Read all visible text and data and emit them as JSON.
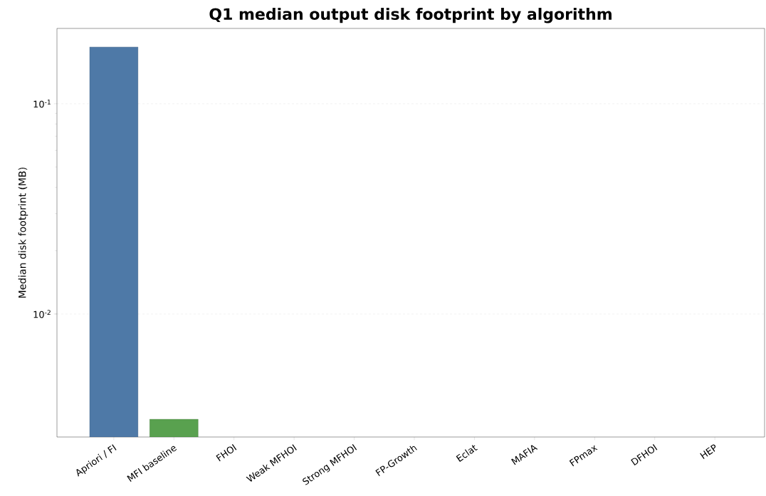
{
  "chart_data": {
    "type": "bar",
    "title": "Q1 median output disk footprint by algorithm",
    "ylabel": "Median disk footprint (MB)",
    "categories": [
      "Apriori / FI",
      "MFI baseline",
      "FHOI",
      "Weak MFHOI",
      "Strong MFHOI",
      "FP-Growth",
      "Eclat",
      "MAFIA",
      "FPmax",
      "DFHOI",
      "HEP"
    ],
    "values": [
      0.186,
      0.00316,
      null,
      null,
      null,
      null,
      null,
      null,
      null,
      null,
      null
    ],
    "colors": [
      "#4e79a7",
      "#59a14f",
      "#4e79a7",
      "#4e79a7",
      "#4e79a7",
      "#4e79a7",
      "#4e79a7",
      "#4e79a7",
      "#4e79a7",
      "#4e79a7",
      "#4e79a7"
    ],
    "log": "y",
    "ylim": [
      0.0026,
      0.228
    ],
    "yticks": [
      {
        "value": 0.01,
        "label": "10$^{-2}$"
      },
      {
        "value": 0.1,
        "label": "10$^{-1}$"
      }
    ],
    "grid": "y"
  }
}
